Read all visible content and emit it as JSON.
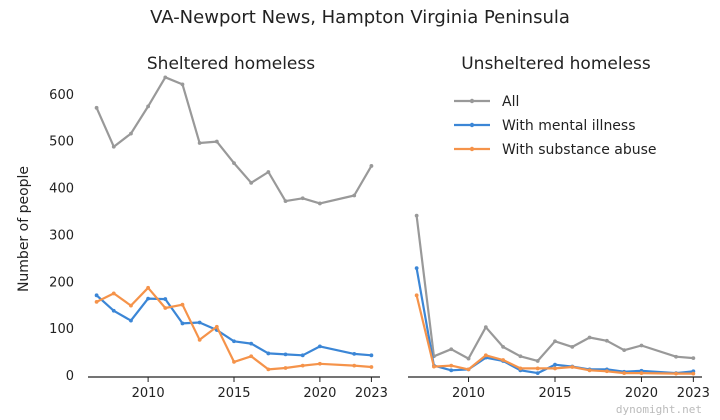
{
  "title": "VA-Newport News, Hampton Virginia Peninsula",
  "watermark": "dynomight.net",
  "ylabel": "Number of people",
  "legend": [
    {
      "name": "All",
      "color": "#999999"
    },
    {
      "name": "With mental illness",
      "color": "#3b86d6"
    },
    {
      "name": "With substance abuse",
      "color": "#f5934a"
    }
  ],
  "chart_data": [
    {
      "type": "line",
      "title": "Sheltered homeless",
      "xlim": [
        2006.5,
        2023.5
      ],
      "ylim": [
        0,
        640
      ],
      "xticks": [
        2010,
        2015,
        2020,
        2023
      ],
      "yticks": [
        0,
        100,
        200,
        300,
        400,
        500,
        600
      ],
      "grid": false,
      "series": [
        {
          "name": "All",
          "color": "#999999",
          "x": [
            2007,
            2008,
            2009,
            2010,
            2011,
            2012,
            2013,
            2014,
            2015,
            2016,
            2017,
            2018,
            2019,
            2020,
            2022,
            2023
          ],
          "y": [
            570,
            487,
            515,
            573,
            635,
            620,
            495,
            498,
            452,
            410,
            433,
            371,
            377,
            366,
            383,
            446
          ]
        },
        {
          "name": "With mental illness",
          "color": "#3b86d6",
          "x": [
            2007,
            2008,
            2009,
            2010,
            2011,
            2012,
            2013,
            2014,
            2015,
            2016,
            2017,
            2018,
            2019,
            2020,
            2022,
            2023
          ],
          "y": [
            170,
            137,
            116,
            163,
            162,
            110,
            112,
            96,
            72,
            67,
            46,
            44,
            42,
            61,
            45,
            42
          ]
        },
        {
          "name": "With substance abuse",
          "color": "#f5934a",
          "x": [
            2007,
            2008,
            2009,
            2010,
            2011,
            2012,
            2013,
            2014,
            2015,
            2016,
            2017,
            2018,
            2019,
            2020,
            2022,
            2023
          ],
          "y": [
            156,
            174,
            148,
            186,
            143,
            150,
            75,
            103,
            28,
            40,
            12,
            15,
            20,
            24,
            20,
            17
          ]
        }
      ]
    },
    {
      "type": "line",
      "title": "Unsheltered homeless",
      "xlim": [
        2006.5,
        2023.5
      ],
      "ylim": [
        0,
        640
      ],
      "xticks": [
        2010,
        2015,
        2020,
        2023
      ],
      "yticks": [],
      "grid": false,
      "series": [
        {
          "name": "All",
          "color": "#999999",
          "x": [
            2007,
            2008,
            2009,
            2010,
            2011,
            2012,
            2013,
            2014,
            2015,
            2016,
            2017,
            2018,
            2019,
            2020,
            2022,
            2023
          ],
          "y": [
            340,
            40,
            55,
            35,
            102,
            60,
            40,
            30,
            72,
            60,
            80,
            73,
            53,
            63,
            39,
            36
          ]
        },
        {
          "name": "With mental illness",
          "color": "#3b86d6",
          "x": [
            2007,
            2008,
            2009,
            2010,
            2011,
            2012,
            2013,
            2014,
            2015,
            2016,
            2017,
            2018,
            2019,
            2020,
            2022,
            2023
          ],
          "y": [
            228,
            20,
            10,
            12,
            37,
            30,
            10,
            4,
            22,
            18,
            12,
            12,
            7,
            9,
            4,
            8
          ]
        },
        {
          "name": "With substance abuse",
          "color": "#f5934a",
          "x": [
            2007,
            2008,
            2009,
            2010,
            2011,
            2012,
            2013,
            2014,
            2015,
            2016,
            2017,
            2018,
            2019,
            2020,
            2022,
            2023
          ],
          "y": [
            170,
            18,
            20,
            12,
            42,
            32,
            14,
            14,
            14,
            17,
            10,
            8,
            4,
            4,
            3,
            3
          ]
        }
      ]
    }
  ]
}
